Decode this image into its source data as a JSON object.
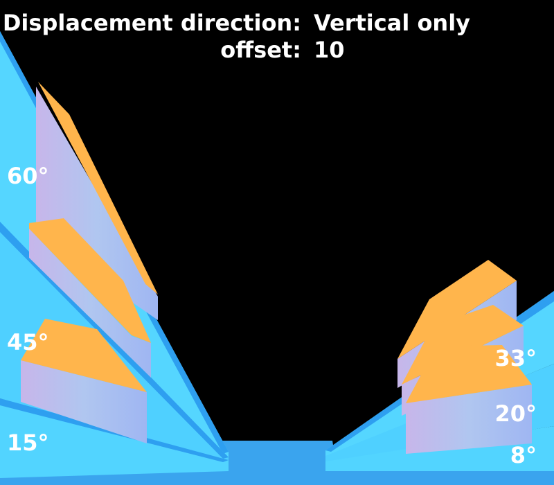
{
  "header": {
    "direction_label": "Displacement direction:",
    "direction_value": "Vertical only",
    "offset_label": "offset:",
    "offset_value": "10"
  },
  "angle_labels": [
    "60°",
    "45°",
    "15°",
    "33°",
    "20°",
    "8°"
  ]
}
